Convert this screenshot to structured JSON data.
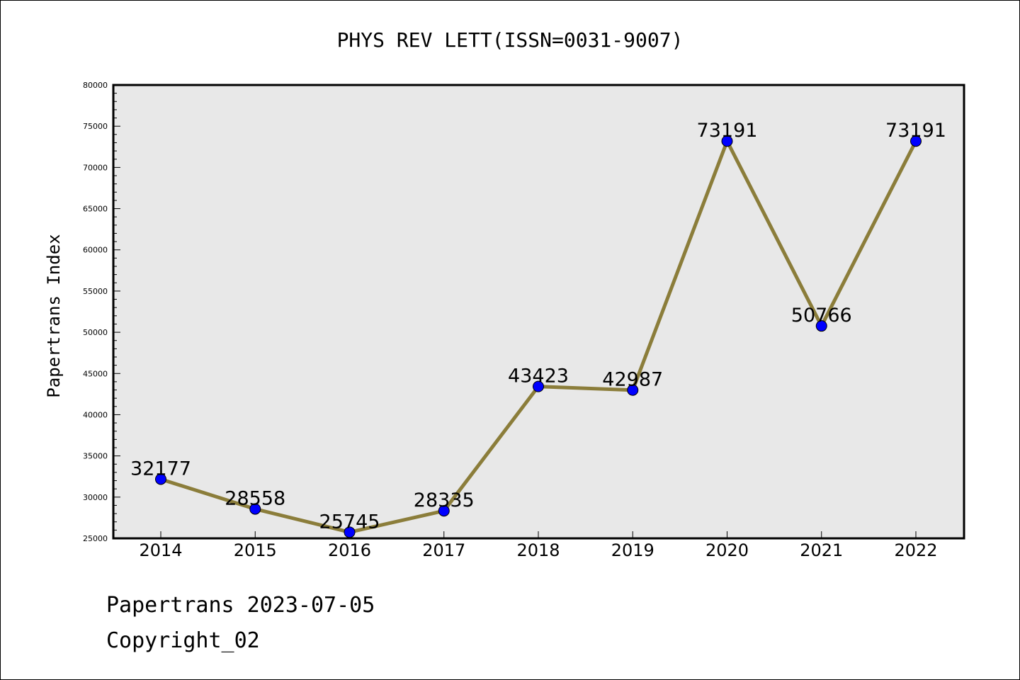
{
  "chart_data": {
    "type": "line",
    "title": "PHYS REV LETT(ISSN=0031-9007)",
    "ylabel": "Papertrans Index",
    "xlabel": "",
    "categories": [
      "2014",
      "2015",
      "2016",
      "2017",
      "2018",
      "2019",
      "2020",
      "2021",
      "2022"
    ],
    "values": [
      32177,
      28558,
      25745,
      28335,
      43423,
      42987,
      73191,
      50766,
      73191
    ],
    "data_labels": [
      "32177",
      "28558",
      "25745",
      "28335",
      "43423",
      "42987",
      "73191",
      "50766",
      "73191"
    ],
    "ylim": [
      25000,
      80000
    ],
    "yticks": [
      "25000",
      "30000",
      "35000",
      "40000",
      "45000",
      "50000",
      "55000",
      "60000",
      "65000",
      "70000",
      "75000",
      "80000"
    ],
    "grid": false,
    "line_color": "#8b7d3a",
    "marker_color": "#0000ff",
    "plot_background": "#e8e8e8"
  },
  "footer": {
    "line1": "Papertrans 2023-07-05",
    "line2": "Copyright_02"
  }
}
